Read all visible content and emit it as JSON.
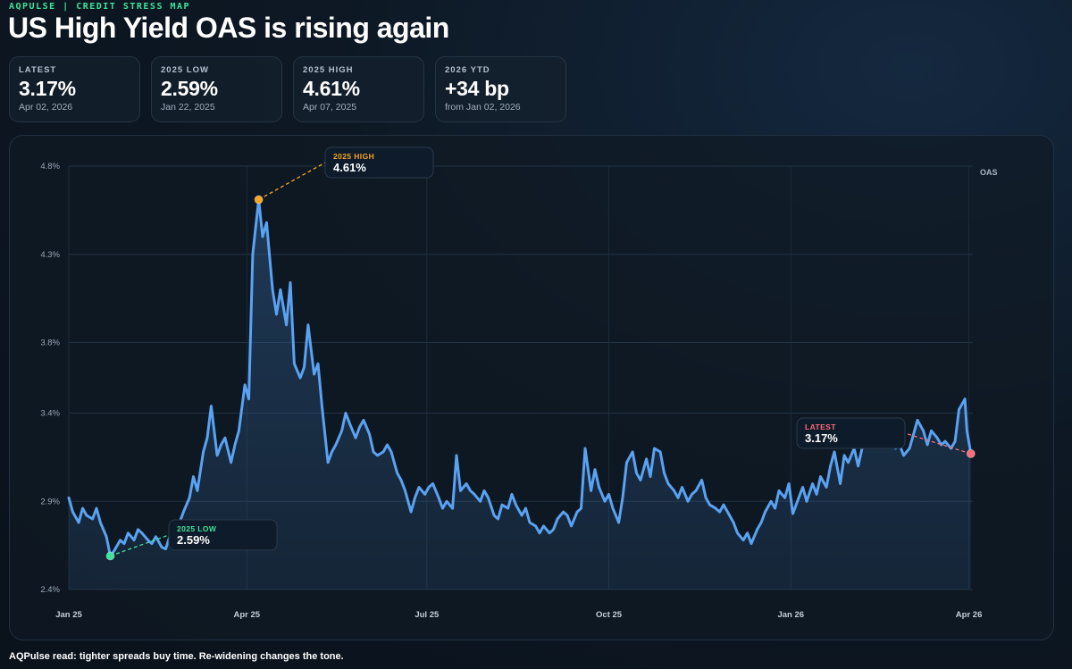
{
  "header": {
    "eyebrow": "AQPULSE | CREDIT STRESS MAP",
    "title": "US High Yield OAS is rising again"
  },
  "kpis": [
    {
      "label": "LATEST",
      "value": "3.17%",
      "sub": "Apr 02, 2026"
    },
    {
      "label": "2025 LOW",
      "value": "2.59%",
      "sub": "Jan 22, 2025"
    },
    {
      "label": "2025 HIGH",
      "value": "4.61%",
      "sub": "Apr 07, 2025"
    },
    {
      "label": "2026 YTD",
      "value": "+34 bp",
      "sub": "from Jan 02, 2026"
    }
  ],
  "footer": "AQPulse read: tighter spreads buy time. Re-widening changes the tone.",
  "chart_data": {
    "type": "area",
    "series_label": "OAS",
    "y_ticks": [
      "2.4%",
      "2.9%",
      "3.4%",
      "3.8%",
      "4.3%",
      "4.8%"
    ],
    "y_tick_values": [
      2.4,
      2.9,
      3.4,
      3.8,
      4.3,
      4.8
    ],
    "ylim": [
      2.4,
      4.8
    ],
    "x_ticks": [
      "Jan 25",
      "Apr 25",
      "Jul 25",
      "Oct 25",
      "Jan 26",
      "Apr 26"
    ],
    "x_tick_dates": [
      "2025-01-01",
      "2025-04-01",
      "2025-07-01",
      "2025-10-01",
      "2026-01-01",
      "2026-04-01"
    ],
    "xlim": [
      "2025-01-01",
      "2026-04-03"
    ],
    "grid": true,
    "colors": {
      "line": "#5aa2f2",
      "high": "#f5a623",
      "low": "#3ee39a",
      "latest": "#ff6b78"
    },
    "annotations": [
      {
        "label": "2025 HIGH",
        "value": "4.61%",
        "date": "2025-04-07",
        "y": 4.61
      },
      {
        "label": "2025 LOW",
        "value": "2.59%",
        "date": "2025-01-22",
        "y": 2.59
      },
      {
        "label": "LATEST",
        "value": "3.17%",
        "date": "2026-04-02",
        "y": 3.17
      }
    ],
    "points": [
      [
        "2025-01-01",
        2.92
      ],
      [
        "2025-01-03",
        2.84
      ],
      [
        "2025-01-06",
        2.78
      ],
      [
        "2025-01-08",
        2.86
      ],
      [
        "2025-01-10",
        2.82
      ],
      [
        "2025-01-13",
        2.8
      ],
      [
        "2025-01-15",
        2.86
      ],
      [
        "2025-01-17",
        2.78
      ],
      [
        "2025-01-20",
        2.7
      ],
      [
        "2025-01-22",
        2.59
      ],
      [
        "2025-01-24",
        2.62
      ],
      [
        "2025-01-27",
        2.68
      ],
      [
        "2025-01-29",
        2.66
      ],
      [
        "2025-01-31",
        2.72
      ],
      [
        "2025-02-03",
        2.68
      ],
      [
        "2025-02-05",
        2.74
      ],
      [
        "2025-02-07",
        2.72
      ],
      [
        "2025-02-10",
        2.68
      ],
      [
        "2025-02-12",
        2.66
      ],
      [
        "2025-02-14",
        2.7
      ],
      [
        "2025-02-17",
        2.64
      ],
      [
        "2025-02-19",
        2.63
      ],
      [
        "2025-02-21",
        2.7
      ],
      [
        "2025-02-24",
        2.76
      ],
      [
        "2025-02-26",
        2.78
      ],
      [
        "2025-02-28",
        2.84
      ],
      [
        "2025-03-03",
        2.92
      ],
      [
        "2025-03-05",
        3.04
      ],
      [
        "2025-03-07",
        2.96
      ],
      [
        "2025-03-10",
        3.18
      ],
      [
        "2025-03-12",
        3.26
      ],
      [
        "2025-03-14",
        3.44
      ],
      [
        "2025-03-17",
        3.16
      ],
      [
        "2025-03-19",
        3.22
      ],
      [
        "2025-03-21",
        3.26
      ],
      [
        "2025-03-24",
        3.12
      ],
      [
        "2025-03-26",
        3.22
      ],
      [
        "2025-03-28",
        3.3
      ],
      [
        "2025-03-31",
        3.56
      ],
      [
        "2025-04-02",
        3.48
      ],
      [
        "2025-04-04",
        4.3
      ],
      [
        "2025-04-07",
        4.61
      ],
      [
        "2025-04-09",
        4.4
      ],
      [
        "2025-04-11",
        4.48
      ],
      [
        "2025-04-14",
        4.1
      ],
      [
        "2025-04-16",
        3.96
      ],
      [
        "2025-04-18",
        4.1
      ],
      [
        "2025-04-21",
        3.9
      ],
      [
        "2025-04-23",
        4.14
      ],
      [
        "2025-04-25",
        3.68
      ],
      [
        "2025-04-28",
        3.6
      ],
      [
        "2025-04-30",
        3.66
      ],
      [
        "2025-05-02",
        3.9
      ],
      [
        "2025-05-05",
        3.62
      ],
      [
        "2025-05-07",
        3.68
      ],
      [
        "2025-05-09",
        3.44
      ],
      [
        "2025-05-12",
        3.12
      ],
      [
        "2025-05-14",
        3.18
      ],
      [
        "2025-05-16",
        3.22
      ],
      [
        "2025-05-19",
        3.3
      ],
      [
        "2025-05-21",
        3.4
      ],
      [
        "2025-05-23",
        3.34
      ],
      [
        "2025-05-26",
        3.26
      ],
      [
        "2025-05-28",
        3.32
      ],
      [
        "2025-05-30",
        3.36
      ],
      [
        "2025-06-02",
        3.28
      ],
      [
        "2025-06-04",
        3.18
      ],
      [
        "2025-06-06",
        3.16
      ],
      [
        "2025-06-09",
        3.18
      ],
      [
        "2025-06-11",
        3.22
      ],
      [
        "2025-06-13",
        3.18
      ],
      [
        "2025-06-16",
        3.06
      ],
      [
        "2025-06-18",
        3.02
      ],
      [
        "2025-06-20",
        2.96
      ],
      [
        "2025-06-23",
        2.84
      ],
      [
        "2025-06-25",
        2.92
      ],
      [
        "2025-06-27",
        2.98
      ],
      [
        "2025-06-30",
        2.94
      ],
      [
        "2025-07-02",
        2.98
      ],
      [
        "2025-07-04",
        3.0
      ],
      [
        "2025-07-07",
        2.92
      ],
      [
        "2025-07-09",
        2.86
      ],
      [
        "2025-07-11",
        2.9
      ],
      [
        "2025-07-14",
        2.86
      ],
      [
        "2025-07-16",
        3.16
      ],
      [
        "2025-07-18",
        2.96
      ],
      [
        "2025-07-21",
        3.0
      ],
      [
        "2025-07-23",
        2.96
      ],
      [
        "2025-07-25",
        2.94
      ],
      [
        "2025-07-28",
        2.9
      ],
      [
        "2025-07-30",
        2.96
      ],
      [
        "2025-08-01",
        2.92
      ],
      [
        "2025-08-04",
        2.82
      ],
      [
        "2025-08-06",
        2.8
      ],
      [
        "2025-08-08",
        2.88
      ],
      [
        "2025-08-11",
        2.86
      ],
      [
        "2025-08-13",
        2.94
      ],
      [
        "2025-08-15",
        2.88
      ],
      [
        "2025-08-18",
        2.82
      ],
      [
        "2025-08-20",
        2.86
      ],
      [
        "2025-08-22",
        2.78
      ],
      [
        "2025-08-25",
        2.76
      ],
      [
        "2025-08-27",
        2.72
      ],
      [
        "2025-08-29",
        2.76
      ],
      [
        "2025-09-01",
        2.72
      ],
      [
        "2025-09-03",
        2.74
      ],
      [
        "2025-09-05",
        2.8
      ],
      [
        "2025-09-08",
        2.84
      ],
      [
        "2025-09-10",
        2.82
      ],
      [
        "2025-09-12",
        2.76
      ],
      [
        "2025-09-15",
        2.84
      ],
      [
        "2025-09-17",
        2.86
      ],
      [
        "2025-09-19",
        3.2
      ],
      [
        "2025-09-22",
        2.96
      ],
      [
        "2025-09-24",
        3.08
      ],
      [
        "2025-09-26",
        2.98
      ],
      [
        "2025-09-29",
        2.9
      ],
      [
        "2025-10-01",
        2.94
      ],
      [
        "2025-10-03",
        2.86
      ],
      [
        "2025-10-06",
        2.78
      ],
      [
        "2025-10-08",
        2.92
      ],
      [
        "2025-10-10",
        3.12
      ],
      [
        "2025-10-13",
        3.18
      ],
      [
        "2025-10-15",
        3.06
      ],
      [
        "2025-10-17",
        3.02
      ],
      [
        "2025-10-20",
        3.14
      ],
      [
        "2025-10-22",
        3.04
      ],
      [
        "2025-10-24",
        3.2
      ],
      [
        "2025-10-27",
        3.18
      ],
      [
        "2025-10-29",
        3.06
      ],
      [
        "2025-10-31",
        3.0
      ],
      [
        "2025-11-03",
        2.96
      ],
      [
        "2025-11-05",
        2.92
      ],
      [
        "2025-11-07",
        2.98
      ],
      [
        "2025-11-10",
        2.9
      ],
      [
        "2025-11-12",
        2.94
      ],
      [
        "2025-11-14",
        2.96
      ],
      [
        "2025-11-17",
        3.02
      ],
      [
        "2025-11-19",
        2.92
      ],
      [
        "2025-11-21",
        2.88
      ],
      [
        "2025-11-24",
        2.86
      ],
      [
        "2025-11-26",
        2.84
      ],
      [
        "2025-11-28",
        2.88
      ],
      [
        "2025-12-01",
        2.82
      ],
      [
        "2025-12-03",
        2.78
      ],
      [
        "2025-12-05",
        2.72
      ],
      [
        "2025-12-08",
        2.68
      ],
      [
        "2025-12-10",
        2.72
      ],
      [
        "2025-12-12",
        2.66
      ],
      [
        "2025-12-15",
        2.74
      ],
      [
        "2025-12-17",
        2.78
      ],
      [
        "2025-12-19",
        2.84
      ],
      [
        "2025-12-22",
        2.9
      ],
      [
        "2025-12-24",
        2.86
      ],
      [
        "2025-12-26",
        2.96
      ],
      [
        "2025-12-29",
        2.92
      ],
      [
        "2025-12-31",
        3.0
      ],
      [
        "2026-01-02",
        2.83
      ],
      [
        "2026-01-05",
        2.92
      ],
      [
        "2026-01-07",
        2.98
      ],
      [
        "2026-01-09",
        2.9
      ],
      [
        "2026-01-12",
        3.0
      ],
      [
        "2026-01-14",
        2.94
      ],
      [
        "2026-01-16",
        3.04
      ],
      [
        "2026-01-19",
        2.98
      ],
      [
        "2026-01-21",
        3.1
      ],
      [
        "2026-01-23",
        3.18
      ],
      [
        "2026-01-26",
        3.0
      ],
      [
        "2026-01-28",
        3.16
      ],
      [
        "2026-01-30",
        3.12
      ],
      [
        "2026-02-02",
        3.2
      ],
      [
        "2026-02-04",
        3.1
      ],
      [
        "2026-02-06",
        3.2
      ],
      [
        "2026-02-09",
        3.32
      ],
      [
        "2026-02-11",
        3.24
      ],
      [
        "2026-02-13",
        3.3
      ],
      [
        "2026-02-16",
        3.26
      ],
      [
        "2026-02-18",
        3.22
      ],
      [
        "2026-02-20",
        3.26
      ],
      [
        "2026-02-23",
        3.2
      ],
      [
        "2026-02-25",
        3.22
      ],
      [
        "2026-02-27",
        3.16
      ],
      [
        "2026-03-02",
        3.2
      ],
      [
        "2026-03-04",
        3.28
      ],
      [
        "2026-03-06",
        3.36
      ],
      [
        "2026-03-09",
        3.3
      ],
      [
        "2026-03-11",
        3.22
      ],
      [
        "2026-03-13",
        3.3
      ],
      [
        "2026-03-16",
        3.26
      ],
      [
        "2026-03-18",
        3.22
      ],
      [
        "2026-03-20",
        3.24
      ],
      [
        "2026-03-23",
        3.2
      ],
      [
        "2026-03-25",
        3.24
      ],
      [
        "2026-03-27",
        3.42
      ],
      [
        "2026-03-30",
        3.48
      ],
      [
        "2026-03-31",
        3.3
      ],
      [
        "2026-04-02",
        3.17
      ]
    ]
  }
}
